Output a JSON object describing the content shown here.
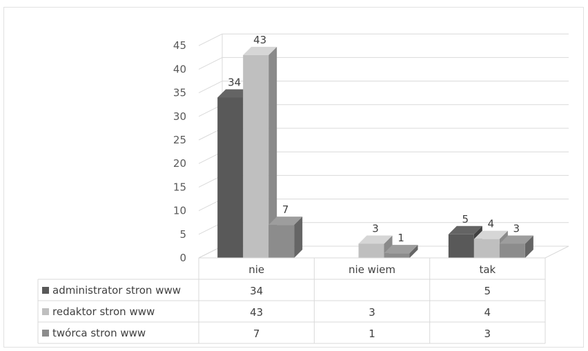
{
  "chart_data": {
    "type": "bar",
    "variant": "3d-clustered-column-with-data-table",
    "categories": [
      "nie",
      "nie wiem",
      "tak"
    ],
    "series": [
      {
        "name": "administrator stron www",
        "values": [
          34,
          null,
          5
        ],
        "color": "#595959"
      },
      {
        "name": "redaktor stron www",
        "values": [
          43,
          3,
          4
        ],
        "color": "#bfbfbf"
      },
      {
        "name": "twórca stron www",
        "values": [
          7,
          1,
          3
        ],
        "color": "#8c8c8c"
      }
    ],
    "ylim": [
      0,
      45
    ],
    "yticks": [
      0,
      5,
      10,
      15,
      20,
      25,
      30,
      35,
      40,
      45
    ],
    "grid": true,
    "legend": "data-table-left",
    "title": "",
    "xlabel": "",
    "ylabel": ""
  }
}
